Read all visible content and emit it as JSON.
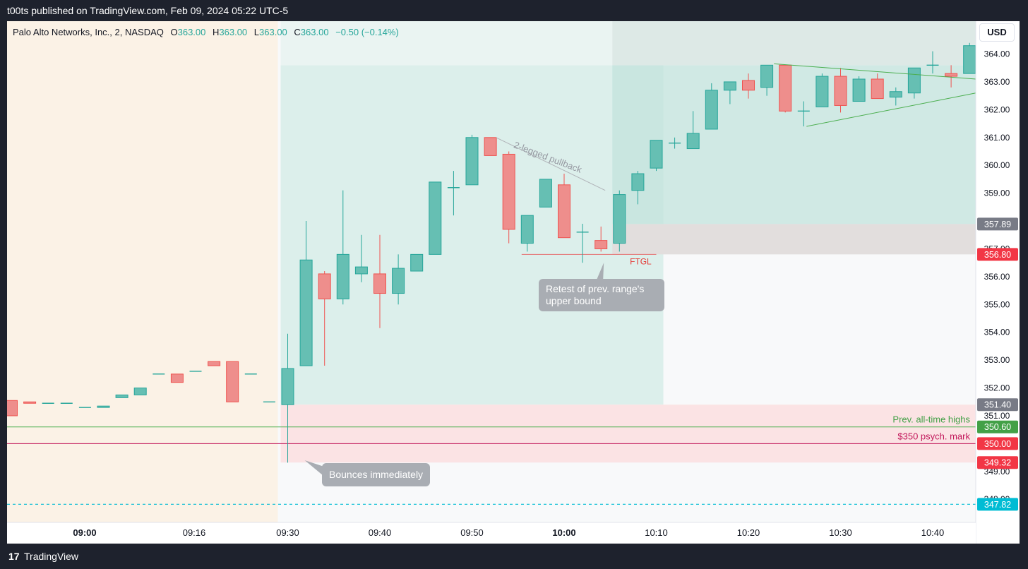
{
  "header": {
    "published_text": "t00ts published on TradingView.com, Feb 09, 2024 05:22 UTC-5"
  },
  "legend": {
    "symbol": "Palo Alto Networks, Inc., 2, NASDAQ",
    "o_label": "O",
    "o_value": "363.00",
    "h_label": "H",
    "h_value": "363.00",
    "l_label": "L",
    "l_value": "363.00",
    "c_label": "C",
    "c_value": "363.00",
    "change": "−0.50 (−0.14%)"
  },
  "currency": "USD",
  "footer": {
    "logo": "17",
    "brand": "TradingView"
  },
  "colors": {
    "up": "#26a69a",
    "down": "#ef5350",
    "premarket_bg": "#fbf2e6",
    "session_bg": "#dcefeb",
    "zone_red": "#fbe3e4",
    "green_line": "#4caf50",
    "psych_line": "#c2185b",
    "dashed_line": "#00bcd4"
  },
  "annotations": {
    "pullback": "2-legged pullback",
    "ftgl": "FTGL",
    "retest": [
      "Retest of prev. range's",
      "upper bound"
    ],
    "bounces": "Bounces immediately",
    "prev_ath": "Prev. all-time highs",
    "psych": "$350 psych. mark"
  },
  "chart_data": {
    "type": "candlestick",
    "title": "Palo Alto Networks, Inc., 2, NASDAQ",
    "interval": "2",
    "yaxis_ticks": [
      364.0,
      363.0,
      362.0,
      361.0,
      360.0,
      359.0,
      358.0,
      357.0,
      356.0,
      355.0,
      354.0,
      353.0,
      352.0,
      351.0,
      349.0,
      348.0
    ],
    "ylim": [
      347.6,
      364.8
    ],
    "xaxis_labels": [
      {
        "label": "09:00",
        "bar": 0,
        "bold": true
      },
      {
        "label": "09:16",
        "bar": 8,
        "bold": false
      },
      {
        "label": "09:30",
        "bar": 15,
        "bold": false
      },
      {
        "label": "09:40",
        "bar": 20,
        "bold": false
      },
      {
        "label": "09:50",
        "bar": 25,
        "bold": false
      },
      {
        "label": "10:00",
        "bar": 30,
        "bold": true
      },
      {
        "label": "10:10",
        "bar": 35,
        "bold": false
      },
      {
        "label": "10:20",
        "bar": 40,
        "bold": false
      },
      {
        "label": "10:30",
        "bar": 45,
        "bold": false
      },
      {
        "label": "10:40",
        "bar": 50,
        "bold": false
      }
    ],
    "candles": [
      {
        "o": 351.55,
        "h": 351.55,
        "l": 351.0,
        "c": 351.0
      },
      {
        "o": 351.5,
        "h": 351.5,
        "l": 351.45,
        "c": 351.45
      },
      {
        "o": 351.45,
        "h": 351.45,
        "l": 351.45,
        "c": 351.45
      },
      {
        "o": 351.45,
        "h": 351.45,
        "l": 351.45,
        "c": 351.45
      },
      {
        "o": 351.3,
        "h": 351.3,
        "l": 351.3,
        "c": 351.3
      },
      {
        "o": 351.3,
        "h": 351.3,
        "l": 351.3,
        "c": 351.35
      },
      {
        "o": 351.65,
        "h": 351.75,
        "l": 351.65,
        "c": 351.75
      },
      {
        "o": 351.75,
        "h": 352.0,
        "l": 351.75,
        "c": 352.0
      },
      {
        "o": 352.5,
        "h": 352.5,
        "l": 352.5,
        "c": 352.5
      },
      {
        "o": 352.5,
        "h": 352.5,
        "l": 352.2,
        "c": 352.2
      },
      {
        "o": 352.6,
        "h": 352.6,
        "l": 352.6,
        "c": 352.6
      },
      {
        "o": 352.95,
        "h": 352.95,
        "l": 352.8,
        "c": 352.8
      },
      {
        "o": 352.95,
        "h": 352.95,
        "l": 351.5,
        "c": 351.5
      },
      {
        "o": 352.5,
        "h": 352.5,
        "l": 352.5,
        "c": 352.5
      },
      {
        "o": 351.5,
        "h": 351.5,
        "l": 351.5,
        "c": 351.5
      },
      {
        "o": 351.4,
        "h": 353.95,
        "l": 349.32,
        "c": 352.7
      },
      {
        "o": 352.8,
        "h": 358.0,
        "l": 352.8,
        "c": 356.6
      },
      {
        "o": 356.1,
        "h": 356.2,
        "l": 352.8,
        "c": 355.2
      },
      {
        "o": 355.2,
        "h": 359.1,
        "l": 355.0,
        "c": 356.8
      },
      {
        "o": 356.1,
        "h": 357.5,
        "l": 355.8,
        "c": 356.35
      },
      {
        "o": 356.1,
        "h": 357.5,
        "l": 354.15,
        "c": 355.4
      },
      {
        "o": 355.4,
        "h": 356.8,
        "l": 355.0,
        "c": 356.3
      },
      {
        "o": 356.2,
        "h": 356.8,
        "l": 356.2,
        "c": 356.8
      },
      {
        "o": 356.8,
        "h": 359.4,
        "l": 356.8,
        "c": 359.4
      },
      {
        "o": 359.2,
        "h": 359.8,
        "l": 358.2,
        "c": 359.2
      },
      {
        "o": 359.3,
        "h": 361.1,
        "l": 359.3,
        "c": 361.0
      },
      {
        "o": 361.0,
        "h": 361.0,
        "l": 360.4,
        "c": 360.35
      },
      {
        "o": 360.4,
        "h": 360.5,
        "l": 357.2,
        "c": 357.7
      },
      {
        "o": 357.2,
        "h": 358.2,
        "l": 356.9,
        "c": 358.2
      },
      {
        "o": 358.5,
        "h": 359.5,
        "l": 358.5,
        "c": 359.5
      },
      {
        "o": 359.3,
        "h": 359.7,
        "l": 357.4,
        "c": 357.4
      },
      {
        "o": 357.6,
        "h": 357.9,
        "l": 356.5,
        "c": 357.6
      },
      {
        "o": 357.3,
        "h": 357.8,
        "l": 356.9,
        "c": 357.0
      },
      {
        "o": 357.2,
        "h": 359.1,
        "l": 356.9,
        "c": 358.95
      },
      {
        "o": 359.1,
        "h": 359.8,
        "l": 358.6,
        "c": 359.7
      },
      {
        "o": 359.9,
        "h": 360.9,
        "l": 359.8,
        "c": 360.9
      },
      {
        "o": 360.8,
        "h": 361.0,
        "l": 360.6,
        "c": 360.8
      },
      {
        "o": 360.6,
        "h": 361.95,
        "l": 360.6,
        "c": 361.15
      },
      {
        "o": 361.3,
        "h": 362.95,
        "l": 361.3,
        "c": 362.7
      },
      {
        "o": 362.7,
        "h": 363.0,
        "l": 362.2,
        "c": 363.0
      },
      {
        "o": 363.05,
        "h": 363.3,
        "l": 362.4,
        "c": 362.7
      },
      {
        "o": 362.8,
        "h": 363.6,
        "l": 362.5,
        "c": 363.6
      },
      {
        "o": 363.6,
        "h": 363.6,
        "l": 361.9,
        "c": 361.95
      },
      {
        "o": 361.95,
        "h": 362.3,
        "l": 361.4,
        "c": 361.95
      },
      {
        "o": 362.1,
        "h": 363.3,
        "l": 362.1,
        "c": 363.2
      },
      {
        "o": 363.2,
        "h": 363.5,
        "l": 361.9,
        "c": 362.15
      },
      {
        "o": 362.3,
        "h": 363.2,
        "l": 362.3,
        "c": 363.1
      },
      {
        "o": 363.1,
        "h": 363.3,
        "l": 362.4,
        "c": 362.4
      },
      {
        "o": 362.45,
        "h": 362.8,
        "l": 362.15,
        "c": 362.65
      },
      {
        "o": 362.6,
        "h": 363.5,
        "l": 362.4,
        "c": 363.5
      },
      {
        "o": 363.6,
        "h": 364.1,
        "l": 363.3,
        "c": 363.6
      },
      {
        "o": 363.3,
        "h": 363.6,
        "l": 362.8,
        "c": 363.2
      },
      {
        "o": 363.3,
        "h": 364.4,
        "l": 363.3,
        "c": 364.3
      }
    ],
    "price_labels": [
      {
        "value": 357.89,
        "text": "357.89",
        "color": "#787b86"
      },
      {
        "value": 356.8,
        "text": "356.80",
        "color": "#f23645"
      },
      {
        "value": 351.4,
        "text": "351.40",
        "color": "#787b86"
      },
      {
        "value": 350.6,
        "text": "350.60",
        "color": "#43a047"
      },
      {
        "value": 350.0,
        "text": "350.00",
        "color": "#f23645"
      },
      {
        "value": 349.32,
        "text": "349.32",
        "color": "#f23645"
      },
      {
        "value": 347.82,
        "text": "347.82",
        "color": "#00bcd4"
      }
    ],
    "horizontal_lines": [
      {
        "value": 350.6,
        "label": "Prev. all-time highs"
      },
      {
        "value": 350.0,
        "label": "$350 psych. mark"
      },
      {
        "value": 347.82,
        "label": ""
      }
    ],
    "zones": [
      {
        "kind": "prior_range",
        "bar_from": 17,
        "bar_to": 23,
        "y_from": 355.0,
        "y_to": 356.9
      },
      {
        "kind": "upside_target_light",
        "bar_from": 15,
        "bar_to": 35,
        "y_from": 351.4,
        "y_to": 363.6
      },
      {
        "kind": "upside_target_dark",
        "bar_from": 33,
        "bar_to": 53,
        "y_from": 357.89,
        "y_to": 363.6
      },
      {
        "kind": "stop_zone",
        "bar_from": 33,
        "bar_to": 53,
        "y_from": 356.8,
        "y_to": 357.89
      },
      {
        "kind": "low_zone",
        "bar_from": 15,
        "bar_to": 53,
        "y_from": 349.32,
        "y_to": 351.4
      }
    ]
  }
}
